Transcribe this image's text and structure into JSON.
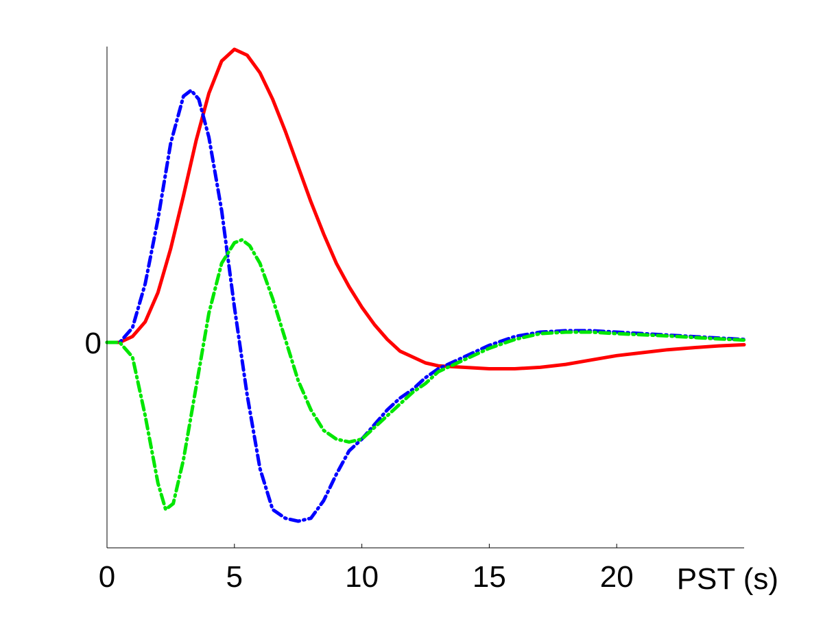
{
  "chart_data": {
    "type": "line",
    "title": "",
    "xlabel": "PST (s)",
    "ylabel": "",
    "xlim": [
      0,
      25
    ],
    "ylim": [
      -0.7,
      1.0
    ],
    "x_ticks": [
      {
        "value": 0,
        "label": "0"
      },
      {
        "value": 5,
        "label": "5"
      },
      {
        "value": 10,
        "label": "10"
      },
      {
        "value": 15,
        "label": "15"
      },
      {
        "value": 20,
        "label": "20"
      }
    ],
    "y_ticks": [
      {
        "value": 0,
        "label": "0"
      }
    ],
    "grid": false,
    "series": [
      {
        "color": "#ff0000",
        "line_style": "solid",
        "points": [
          [
            0,
            0
          ],
          [
            0.5,
            0
          ],
          [
            1,
            0.02
          ],
          [
            1.5,
            0.07
          ],
          [
            2,
            0.17
          ],
          [
            2.5,
            0.32
          ],
          [
            3,
            0.5
          ],
          [
            3.5,
            0.69
          ],
          [
            4,
            0.85
          ],
          [
            4.5,
            0.96
          ],
          [
            5,
            1.0
          ],
          [
            5.5,
            0.98
          ],
          [
            6,
            0.92
          ],
          [
            6.5,
            0.83
          ],
          [
            7,
            0.72
          ],
          [
            7.5,
            0.6
          ],
          [
            8,
            0.48
          ],
          [
            8.5,
            0.37
          ],
          [
            9,
            0.27
          ],
          [
            9.5,
            0.19
          ],
          [
            10,
            0.12
          ],
          [
            10.5,
            0.06
          ],
          [
            11,
            0.01
          ],
          [
            11.5,
            -0.03
          ],
          [
            12,
            -0.05
          ],
          [
            12.5,
            -0.07
          ],
          [
            13,
            -0.08
          ],
          [
            14,
            -0.085
          ],
          [
            15,
            -0.09
          ],
          [
            16,
            -0.09
          ],
          [
            17,
            -0.085
          ],
          [
            18,
            -0.075
          ],
          [
            19,
            -0.06
          ],
          [
            20,
            -0.045
          ],
          [
            21,
            -0.035
          ],
          [
            22,
            -0.025
          ],
          [
            23,
            -0.018
          ],
          [
            24,
            -0.012
          ],
          [
            25,
            -0.008
          ]
        ]
      },
      {
        "color": "#0000ff",
        "line_style": "dash-dot",
        "points": [
          [
            0,
            0
          ],
          [
            0.5,
            0
          ],
          [
            1,
            0.05
          ],
          [
            1.5,
            0.2
          ],
          [
            2,
            0.42
          ],
          [
            2.5,
            0.68
          ],
          [
            3,
            0.84
          ],
          [
            3.3,
            0.86
          ],
          [
            3.6,
            0.83
          ],
          [
            4,
            0.7
          ],
          [
            4.5,
            0.45
          ],
          [
            5,
            0.12
          ],
          [
            5.5,
            -0.18
          ],
          [
            6,
            -0.43
          ],
          [
            6.5,
            -0.57
          ],
          [
            7,
            -0.6
          ],
          [
            7.5,
            -0.61
          ],
          [
            8,
            -0.6
          ],
          [
            8.5,
            -0.54
          ],
          [
            9,
            -0.45
          ],
          [
            9.5,
            -0.37
          ],
          [
            10,
            -0.33
          ],
          [
            10.5,
            -0.28
          ],
          [
            11,
            -0.23
          ],
          [
            11.5,
            -0.19
          ],
          [
            12,
            -0.16
          ],
          [
            12.5,
            -0.12
          ],
          [
            13,
            -0.09
          ],
          [
            14,
            -0.05
          ],
          [
            15,
            -0.01
          ],
          [
            16,
            0.02
          ],
          [
            17,
            0.035
          ],
          [
            18,
            0.04
          ],
          [
            19,
            0.04
          ],
          [
            20,
            0.035
          ],
          [
            22,
            0.025
          ],
          [
            24,
            0.015
          ],
          [
            25,
            0.01
          ]
        ]
      },
      {
        "color": "#00e600",
        "line_style": "dash-dot",
        "points": [
          [
            0,
            0
          ],
          [
            0.5,
            0
          ],
          [
            1,
            -0.05
          ],
          [
            1.5,
            -0.25
          ],
          [
            2,
            -0.48
          ],
          [
            2.3,
            -0.57
          ],
          [
            2.6,
            -0.55
          ],
          [
            3,
            -0.4
          ],
          [
            3.5,
            -0.15
          ],
          [
            4,
            0.1
          ],
          [
            4.5,
            0.27
          ],
          [
            5,
            0.34
          ],
          [
            5.3,
            0.35
          ],
          [
            5.6,
            0.33
          ],
          [
            6,
            0.27
          ],
          [
            6.5,
            0.15
          ],
          [
            7,
            0.01
          ],
          [
            7.5,
            -0.13
          ],
          [
            8,
            -0.23
          ],
          [
            8.5,
            -0.3
          ],
          [
            9,
            -0.33
          ],
          [
            9.5,
            -0.34
          ],
          [
            10,
            -0.33
          ],
          [
            10.5,
            -0.29
          ],
          [
            11,
            -0.25
          ],
          [
            11.5,
            -0.21
          ],
          [
            12,
            -0.17
          ],
          [
            12.5,
            -0.14
          ],
          [
            13,
            -0.1
          ],
          [
            14,
            -0.06
          ],
          [
            15,
            -0.02
          ],
          [
            16,
            0.01
          ],
          [
            17,
            0.03
          ],
          [
            18,
            0.035
          ],
          [
            19,
            0.035
          ],
          [
            20,
            0.03
          ],
          [
            22,
            0.022
          ],
          [
            24,
            0.012
          ],
          [
            25,
            0.008
          ]
        ]
      }
    ]
  }
}
